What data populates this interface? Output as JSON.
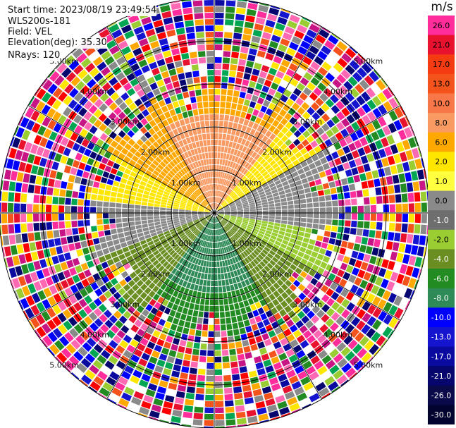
{
  "header": {
    "start_time": "Start time: 2023/08/19 23:49:54",
    "instrument": "WLS200s-181",
    "field": "Field: VEL",
    "elevation": "Elevation(deg): 35.30",
    "nrays": "NRays: 120"
  },
  "chart_data": {
    "type": "ppi",
    "field": "VEL",
    "units": "m/s",
    "max_range_km": 5.0,
    "ring_labels": [
      "1.00km",
      "2.00km",
      "3.00km",
      "4.00km",
      "5.00km"
    ],
    "colorbar": {
      "label": "m/s",
      "tick_labels": [
        "26.0",
        "21.0",
        "17.0",
        "13.0",
        "10.0",
        "8.0",
        "6.0",
        "2.0",
        "1.0",
        "0.0",
        "-1.0",
        "-2.0",
        "-4.0",
        "-6.0",
        "-8.0",
        "-10.0",
        "-13.0",
        "-17.0",
        "-21.0",
        "-26.0",
        "-30.0"
      ],
      "colors": [
        "#ff2d9b",
        "#e8122f",
        "#f43b12",
        "#f4541c",
        "#f87748",
        "#f99a62",
        "#ffa800",
        "#ffe600",
        "#ffff40",
        "#8a8a8a",
        "#6e6e6e",
        "#9acd32",
        "#6b8e23",
        "#228b22",
        "#2e8b57",
        "#0000ff",
        "#1515d0",
        "#0a0aa0",
        "#06066e",
        "#0a0a4a",
        "#030330"
      ]
    }
  }
}
